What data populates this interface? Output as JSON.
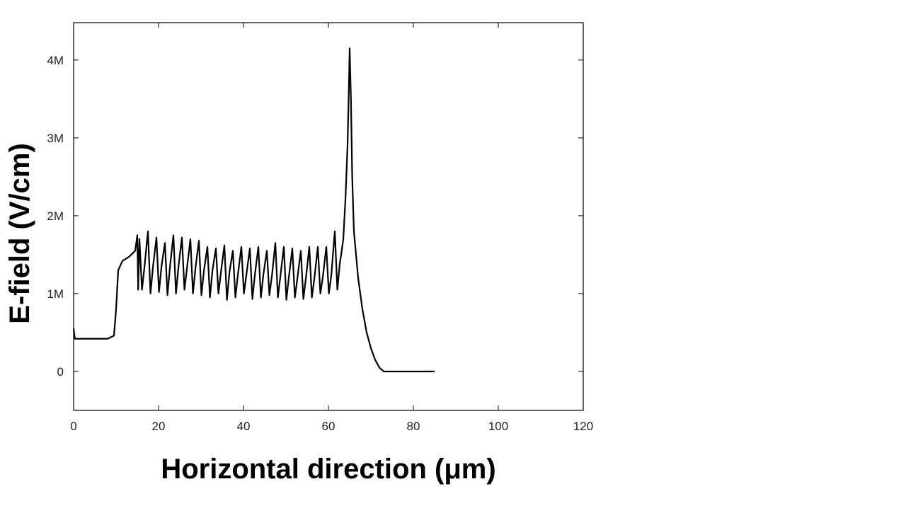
{
  "chart_data": {
    "type": "line",
    "x_label": "Horizontal direction (μm)",
    "y_label": "E-field (V/cm)",
    "xlim": [
      0,
      120
    ],
    "xticks": [
      0,
      20,
      40,
      60,
      80,
      100,
      120
    ],
    "ylim": [
      -500000,
      4480000
    ],
    "yticks": [
      {
        "value": 0,
        "label": "0"
      },
      {
        "value": 1000000,
        "label": "1M"
      },
      {
        "value": 2000000,
        "label": "2M"
      },
      {
        "value": 3000000,
        "label": "3M"
      },
      {
        "value": 4000000,
        "label": "4M"
      }
    ],
    "color": "#000000",
    "x": [
      0,
      0.3,
      8,
      9.5,
      10,
      10.5,
      11.5,
      13,
      14.5,
      15,
      15.2,
      15.5,
      16.1,
      16.7,
      17.5,
      18.1,
      18.7,
      19.5,
      20.1,
      20.7,
      21.5,
      22.1,
      22.7,
      23.5,
      24.1,
      24.7,
      25.5,
      26.1,
      26.7,
      27.5,
      28.1,
      28.7,
      29.5,
      30.1,
      30.7,
      31.5,
      32.1,
      32.7,
      33.5,
      34.1,
      34.7,
      35.5,
      36.1,
      36.7,
      37.5,
      38.1,
      38.7,
      39.5,
      40.1,
      40.7,
      41.5,
      42.1,
      42.7,
      43.5,
      44.1,
      44.7,
      45.5,
      46.1,
      46.7,
      47.5,
      48.1,
      48.7,
      49.5,
      50.1,
      50.7,
      51.5,
      52.1,
      52.7,
      53.5,
      54.1,
      54.7,
      55.5,
      56.1,
      56.7,
      57.5,
      58.1,
      58.7,
      59.5,
      60.1,
      60.7,
      61.5,
      62.1,
      62.7,
      63,
      63.5,
      64,
      64.5,
      64.8,
      65,
      65.3,
      65.6,
      66,
      67,
      68,
      69,
      70,
      71,
      72,
      73,
      85
    ],
    "values": [
      550000,
      420000,
      420000,
      460000,
      800000,
      1300000,
      1420000,
      1470000,
      1550000,
      1750000,
      1050000,
      1700000,
      1050000,
      1350000,
      1800000,
      1000000,
      1350000,
      1720000,
      1020000,
      1350000,
      1650000,
      980000,
      1350000,
      1750000,
      1000000,
      1350000,
      1720000,
      1050000,
      1330000,
      1700000,
      1000000,
      1330000,
      1680000,
      980000,
      1300000,
      1600000,
      950000,
      1300000,
      1580000,
      1000000,
      1280000,
      1620000,
      920000,
      1280000,
      1550000,
      950000,
      1250000,
      1600000,
      1000000,
      1250000,
      1580000,
      930000,
      1250000,
      1600000,
      950000,
      1250000,
      1550000,
      980000,
      1230000,
      1650000,
      950000,
      1230000,
      1600000,
      920000,
      1220000,
      1580000,
      950000,
      1200000,
      1550000,
      930000,
      1200000,
      1600000,
      950000,
      1200000,
      1600000,
      1000000,
      1220000,
      1600000,
      1000000,
      1250000,
      1800000,
      1050000,
      1400000,
      1500000,
      1700000,
      2200000,
      2900000,
      3600000,
      4150000,
      3500000,
      2500000,
      1800000,
      1200000,
      800000,
      500000,
      300000,
      150000,
      50000,
      0,
      0
    ]
  }
}
